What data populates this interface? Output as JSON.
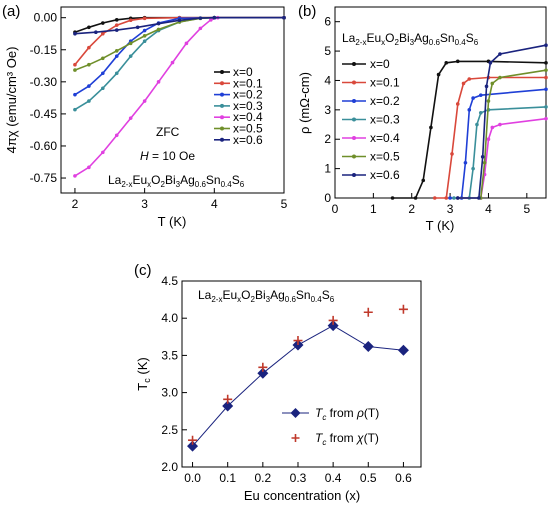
{
  "colors": {
    "x=0": "#111111",
    "x=0.1": "#d9483b",
    "x=0.2": "#1f3fd6",
    "x=0.3": "#3a8f9a",
    "x=0.4": "#e040e0",
    "x=0.5": "#6f8f2a",
    "x=0.6": "#1a237e",
    "tc_rho": "#1a237e",
    "tc_chi": "#c0392b"
  },
  "chart_data": [
    {
      "panel": "(a)",
      "type": "line",
      "xlabel": "T (K)",
      "ylabel": "4πχ (emu/cm³ Oe)",
      "xlim": [
        1.8,
        5.0
      ],
      "ylim": [
        -0.82,
        0.05
      ],
      "xticks": [
        "2",
        "3",
        "4",
        "5"
      ],
      "yticks": [
        "0.00",
        "-0.15",
        "-0.30",
        "-0.45",
        "-0.60",
        "-0.75"
      ],
      "annotations": [
        "ZFC",
        "H = 10 Oe",
        "La2-xEuxO2Bi3Ag0.6Sn0.4S6"
      ],
      "series": [
        {
          "name": "x=0",
          "x": [
            2.0,
            2.2,
            2.4,
            2.6,
            2.8,
            3.0,
            3.5,
            4.0,
            5.0
          ],
          "y": [
            -0.068,
            -0.045,
            -0.025,
            -0.01,
            -0.003,
            0.0,
            0.0,
            0.0,
            0.0
          ]
        },
        {
          "name": "x=0.1",
          "x": [
            2.0,
            2.2,
            2.4,
            2.6,
            2.8,
            3.0,
            3.5,
            4.0,
            5.0
          ],
          "y": [
            -0.22,
            -0.14,
            -0.075,
            -0.035,
            -0.012,
            -0.003,
            0.0,
            0.0,
            0.0
          ]
        },
        {
          "name": "x=0.2",
          "x": [
            2.0,
            2.2,
            2.4,
            2.6,
            2.8,
            3.0,
            3.2,
            3.5,
            4.0,
            5.0
          ],
          "y": [
            -0.36,
            -0.32,
            -0.26,
            -0.18,
            -0.11,
            -0.06,
            -0.025,
            -0.003,
            0.0,
            0.0
          ]
        },
        {
          "name": "x=0.3",
          "x": [
            2.0,
            2.2,
            2.4,
            2.6,
            2.8,
            3.0,
            3.2,
            3.5,
            3.8,
            4.0,
            5.0
          ],
          "y": [
            -0.43,
            -0.39,
            -0.33,
            -0.26,
            -0.18,
            -0.11,
            -0.06,
            -0.02,
            -0.002,
            0.0,
            0.0
          ]
        },
        {
          "name": "x=0.4",
          "x": [
            2.0,
            2.2,
            2.4,
            2.6,
            2.8,
            3.0,
            3.2,
            3.4,
            3.6,
            3.8,
            3.95,
            4.05,
            5.0
          ],
          "y": [
            -0.74,
            -0.7,
            -0.63,
            -0.55,
            -0.47,
            -0.39,
            -0.3,
            -0.21,
            -0.12,
            -0.05,
            -0.01,
            0.0,
            0.0
          ]
        },
        {
          "name": "x=0.5",
          "x": [
            2.0,
            2.2,
            2.4,
            2.6,
            2.8,
            3.0,
            3.2,
            3.5,
            3.8,
            4.0,
            5.0
          ],
          "y": [
            -0.245,
            -0.22,
            -0.19,
            -0.155,
            -0.12,
            -0.085,
            -0.055,
            -0.02,
            -0.003,
            0.0,
            0.0
          ]
        },
        {
          "name": "x=0.6",
          "x": [
            2.0,
            2.3,
            2.6,
            2.9,
            3.2,
            3.5,
            3.8,
            4.0,
            5.0
          ],
          "y": [
            -0.075,
            -0.068,
            -0.058,
            -0.045,
            -0.028,
            -0.012,
            -0.002,
            0.0,
            0.0
          ]
        }
      ]
    },
    {
      "panel": "(b)",
      "type": "line",
      "xlabel": "T (K)",
      "ylabel": "ρ (mΩ-cm)",
      "xlim": [
        0,
        5.5
      ],
      "ylim": [
        0,
        6.5
      ],
      "xticks": [
        "0",
        "1",
        "2",
        "3",
        "4",
        "5"
      ],
      "yticks": [
        "0",
        "1",
        "2",
        "3",
        "4",
        "5",
        "6"
      ],
      "annotations": [
        "La2-xEuxO2Bi3Ag0.6Sn0.4S6"
      ],
      "series": [
        {
          "name": "x=0",
          "x": [
            1.5,
            2.1,
            2.3,
            2.5,
            2.7,
            2.9,
            3.2,
            4.0,
            5.5
          ],
          "y": [
            0.0,
            0.0,
            0.6,
            2.4,
            4.2,
            4.6,
            4.65,
            4.65,
            4.6
          ]
        },
        {
          "name": "x=0.1",
          "x": [
            2.6,
            2.9,
            3.05,
            3.2,
            3.35,
            3.5,
            4.0,
            5.5
          ],
          "y": [
            0.0,
            0.0,
            1.5,
            3.2,
            3.9,
            4.05,
            4.1,
            4.1
          ]
        },
        {
          "name": "x=0.2",
          "x": [
            3.0,
            3.3,
            3.4,
            3.5,
            3.6,
            3.8,
            5.5
          ],
          "y": [
            0.0,
            0.0,
            1.2,
            3.0,
            3.4,
            3.5,
            3.7
          ]
        },
        {
          "name": "x=0.3",
          "x": [
            3.1,
            3.5,
            3.6,
            3.7,
            3.8,
            4.0,
            5.5
          ],
          "y": [
            0.0,
            0.0,
            1.0,
            2.5,
            2.9,
            3.0,
            3.1
          ]
        },
        {
          "name": "x=0.4",
          "x": [
            3.2,
            3.8,
            3.9,
            4.0,
            4.1,
            4.3,
            5.5
          ],
          "y": [
            0.0,
            0.0,
            0.8,
            2.0,
            2.4,
            2.5,
            2.7
          ]
        },
        {
          "name": "x=0.5",
          "x": [
            3.2,
            3.8,
            3.9,
            4.0,
            4.1,
            4.3,
            5.5
          ],
          "y": [
            0.0,
            0.0,
            1.2,
            3.3,
            3.9,
            4.1,
            4.35
          ]
        },
        {
          "name": "x=0.6",
          "x": [
            3.2,
            3.75,
            3.85,
            3.95,
            4.05,
            4.3,
            5.5
          ],
          "y": [
            0.0,
            0.0,
            1.4,
            3.8,
            4.6,
            4.9,
            5.2
          ]
        }
      ]
    },
    {
      "panel": "(c)",
      "type": "scatter",
      "xlabel": "Eu concentration (x)",
      "ylabel": "Tc (K)",
      "xlim": [
        -0.03,
        0.65
      ],
      "ylim": [
        2.0,
        4.5
      ],
      "xticks": [
        "0.0",
        "0.1",
        "0.2",
        "0.3",
        "0.4",
        "0.5",
        "0.6"
      ],
      "yticks": [
        "2.0",
        "2.5",
        "3.0",
        "3.5",
        "4.0",
        "4.5"
      ],
      "annotations": [
        "La2-xEuxO2Bi3Ag0.6Sn0.4S6"
      ],
      "series": [
        {
          "name": "Tc from ρ(T)",
          "x": [
            0.0,
            0.1,
            0.2,
            0.3,
            0.4,
            0.5,
            0.6
          ],
          "y": [
            2.28,
            2.82,
            3.26,
            3.64,
            3.9,
            3.62,
            3.57
          ]
        },
        {
          "name": "Tc from χ(T)",
          "x": [
            0.0,
            0.1,
            0.2,
            0.3,
            0.4,
            0.5,
            0.6
          ],
          "y": [
            2.36,
            2.91,
            3.34,
            3.7,
            3.97,
            4.08,
            4.12
          ]
        }
      ]
    }
  ]
}
